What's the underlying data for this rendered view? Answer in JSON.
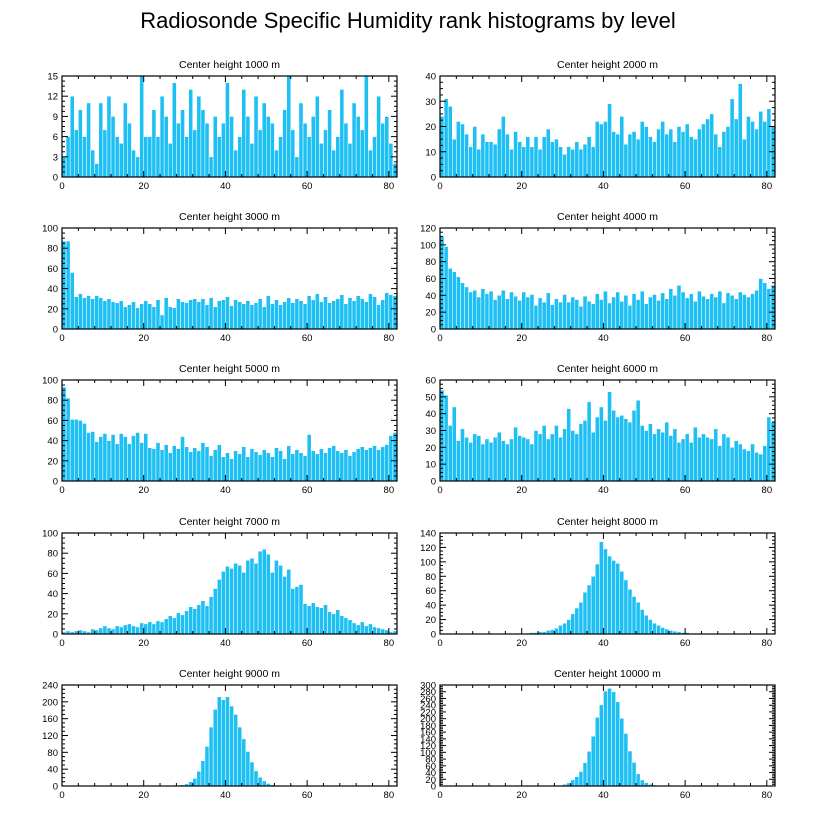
{
  "title": "Radiosonde Specific Humidity rank histograms by level",
  "colors": {
    "bar": "#1ec0f4",
    "bar_edge": "#ffffff",
    "axis": "#000000"
  },
  "chart_data": [
    {
      "type": "bar",
      "title": "Center height 1000 m",
      "xlabel": "",
      "ylabel": "",
      "xlim": [
        0,
        82
      ],
      "ylim": [
        0,
        15
      ],
      "xticks": [
        0,
        20,
        40,
        60,
        80
      ],
      "yticks": [
        0,
        3,
        6,
        9,
        12,
        15
      ],
      "values": [
        3,
        6,
        12,
        7,
        10,
        6,
        11,
        4,
        2,
        11,
        7,
        12,
        9,
        6,
        5,
        11,
        8,
        4,
        3,
        15,
        6,
        6,
        10,
        6,
        12,
        9,
        5,
        14,
        8,
        10,
        6,
        13,
        7,
        12,
        10,
        8,
        3,
        9,
        6,
        8,
        14,
        9,
        4,
        6,
        13,
        9,
        5,
        12,
        7,
        11,
        9,
        8,
        4,
        6,
        10,
        15,
        7,
        3,
        11,
        8,
        6,
        9,
        12,
        5,
        7,
        10,
        4,
        6,
        13,
        8,
        5,
        11,
        9,
        7,
        15,
        4,
        6,
        12,
        8,
        9,
        5,
        2
      ]
    },
    {
      "type": "bar",
      "title": "Center height 2000 m",
      "xlabel": "",
      "ylabel": "",
      "xlim": [
        0,
        82
      ],
      "ylim": [
        0,
        40
      ],
      "xticks": [
        0,
        20,
        40,
        60,
        80
      ],
      "yticks": [
        0,
        10,
        20,
        30,
        40
      ],
      "values": [
        24,
        31,
        28,
        15,
        22,
        21,
        17,
        12,
        20,
        11,
        17,
        14,
        14,
        13,
        19,
        24,
        17,
        11,
        18,
        14,
        12,
        16,
        12,
        16,
        11,
        16,
        19,
        14,
        15,
        12,
        9,
        12,
        11,
        14,
        11,
        13,
        16,
        12,
        22,
        21,
        22,
        29,
        18,
        17,
        24,
        13,
        17,
        18,
        15,
        22,
        20,
        16,
        14,
        19,
        22,
        17,
        19,
        14,
        20,
        18,
        21,
        16,
        15,
        19,
        21,
        23,
        25,
        17,
        12,
        18,
        20,
        31,
        23,
        37,
        15,
        24,
        22,
        19,
        26,
        22,
        27,
        20
      ]
    },
    {
      "type": "bar",
      "title": "Center height 3000 m",
      "xlabel": "",
      "ylabel": "",
      "xlim": [
        0,
        82
      ],
      "ylim": [
        0,
        100
      ],
      "xticks": [
        0,
        20,
        40,
        60,
        80
      ],
      "yticks": [
        0,
        20,
        40,
        60,
        80,
        100
      ],
      "values": [
        87,
        87,
        56,
        32,
        35,
        31,
        33,
        30,
        33,
        31,
        28,
        30,
        27,
        26,
        28,
        22,
        24,
        27,
        21,
        25,
        28,
        25,
        22,
        29,
        14,
        31,
        22,
        21,
        30,
        27,
        26,
        29,
        30,
        27,
        30,
        24,
        31,
        22,
        28,
        29,
        32,
        23,
        29,
        27,
        25,
        28,
        24,
        26,
        30,
        22,
        33,
        25,
        29,
        24,
        27,
        31,
        26,
        30,
        28,
        25,
        33,
        29,
        35,
        27,
        32,
        26,
        28,
        30,
        34,
        25,
        31,
        28,
        33,
        30,
        27,
        35,
        32,
        24,
        29,
        36,
        34,
        33
      ]
    },
    {
      "type": "bar",
      "title": "Center height 4000 m",
      "xlabel": "",
      "ylabel": "",
      "xlim": [
        0,
        82
      ],
      "ylim": [
        0,
        120
      ],
      "xticks": [
        0,
        20,
        40,
        60,
        80
      ],
      "yticks": [
        0,
        20,
        40,
        60,
        80,
        100,
        120
      ],
      "values": [
        110,
        98,
        72,
        68,
        62,
        55,
        50,
        44,
        46,
        38,
        48,
        42,
        45,
        35,
        40,
        46,
        36,
        44,
        39,
        34,
        44,
        38,
        41,
        28,
        37,
        32,
        43,
        29,
        36,
        32,
        41,
        32,
        38,
        35,
        27,
        39,
        33,
        30,
        42,
        35,
        45,
        31,
        38,
        44,
        33,
        40,
        28,
        42,
        35,
        45,
        30,
        38,
        41,
        34,
        43,
        36,
        48,
        40,
        52,
        44,
        37,
        42,
        33,
        45,
        39,
        36,
        42,
        38,
        45,
        31,
        43,
        40,
        36,
        44,
        41,
        38,
        42,
        46,
        60,
        55,
        48,
        52
      ]
    },
    {
      "type": "bar",
      "title": "Center height 5000 m",
      "xlabel": "",
      "ylabel": "",
      "xlim": [
        0,
        82
      ],
      "ylim": [
        0,
        100
      ],
      "xticks": [
        0,
        20,
        40,
        60,
        80
      ],
      "yticks": [
        0,
        20,
        40,
        60,
        80,
        100
      ],
      "values": [
        93,
        82,
        61,
        61,
        60,
        57,
        48,
        49,
        39,
        44,
        47,
        40,
        46,
        37,
        47,
        44,
        37,
        45,
        48,
        38,
        47,
        33,
        32,
        38,
        31,
        36,
        28,
        35,
        32,
        44,
        34,
        29,
        33,
        30,
        38,
        34,
        25,
        31,
        36,
        24,
        28,
        22,
        30,
        27,
        34,
        24,
        32,
        29,
        26,
        31,
        28,
        24,
        33,
        30,
        22,
        35,
        27,
        31,
        28,
        25,
        46,
        30,
        27,
        32,
        28,
        33,
        35,
        30,
        28,
        31,
        25,
        29,
        32,
        34,
        31,
        33,
        35,
        31,
        34,
        36,
        45,
        48
      ]
    },
    {
      "type": "bar",
      "title": "Center height 6000 m",
      "xlabel": "",
      "ylabel": "",
      "xlim": [
        0,
        82
      ],
      "ylim": [
        0,
        60
      ],
      "xticks": [
        0,
        20,
        40,
        60,
        80
      ],
      "yticks": [
        0,
        10,
        20,
        30,
        40,
        50,
        60
      ],
      "values": [
        54,
        51,
        33,
        44,
        24,
        31,
        26,
        23,
        28,
        27,
        22,
        25,
        23,
        26,
        29,
        24,
        22,
        25,
        32,
        27,
        26,
        25,
        22,
        30,
        28,
        33,
        25,
        28,
        33,
        26,
        31,
        43,
        30,
        28,
        34,
        36,
        47,
        29,
        38,
        44,
        36,
        53,
        42,
        38,
        39,
        37,
        35,
        42,
        48,
        33,
        30,
        34,
        28,
        31,
        29,
        35,
        27,
        31,
        23,
        25,
        28,
        23,
        32,
        26,
        28,
        26,
        25,
        31,
        21,
        28,
        26,
        20,
        24,
        22,
        19,
        18,
        22,
        17,
        16,
        21,
        38,
        35
      ]
    },
    {
      "type": "bar",
      "title": "Center height 7000 m",
      "xlabel": "",
      "ylabel": "",
      "xlim": [
        0,
        82
      ],
      "ylim": [
        0,
        100
      ],
      "xticks": [
        0,
        20,
        40,
        60,
        80
      ],
      "yticks": [
        0,
        20,
        40,
        60,
        80,
        100
      ],
      "values": [
        2,
        3,
        2,
        3,
        4,
        3,
        2,
        5,
        4,
        6,
        8,
        6,
        5,
        8,
        7,
        9,
        10,
        8,
        7,
        11,
        10,
        12,
        10,
        13,
        12,
        15,
        18,
        16,
        21,
        19,
        23,
        27,
        25,
        29,
        33,
        28,
        37,
        45,
        54,
        62,
        67,
        65,
        70,
        68,
        61,
        73,
        75,
        70,
        82,
        84,
        79,
        61,
        73,
        68,
        57,
        64,
        45,
        47,
        49,
        30,
        28,
        31,
        27,
        26,
        29,
        22,
        20,
        24,
        18,
        16,
        14,
        11,
        9,
        12,
        8,
        10,
        7,
        6,
        5,
        4,
        2,
        3
      ]
    },
    {
      "type": "bar",
      "title": "Center height 8000 m",
      "xlabel": "",
      "ylabel": "",
      "xlim": [
        0,
        82
      ],
      "ylim": [
        0,
        140
      ],
      "xticks": [
        0,
        20,
        40,
        60,
        80
      ],
      "yticks": [
        0,
        20,
        40,
        60,
        80,
        100,
        120,
        140
      ],
      "values": [
        0,
        0,
        0,
        0,
        0,
        0,
        0,
        0,
        0,
        0,
        0,
        0,
        0,
        0,
        0,
        0,
        0,
        0,
        0,
        0,
        1,
        1,
        2,
        2,
        3,
        3,
        5,
        6,
        8,
        12,
        15,
        20,
        28,
        36,
        44,
        58,
        68,
        80,
        97,
        128,
        118,
        108,
        102,
        98,
        87,
        75,
        62,
        52,
        44,
        34,
        26,
        20,
        15,
        12,
        9,
        7,
        5,
        4,
        3,
        2,
        2,
        1,
        1,
        1,
        0,
        0,
        0,
        0,
        0,
        0,
        0,
        0,
        0,
        0,
        0,
        0,
        0,
        0,
        0,
        0,
        0,
        0
      ]
    },
    {
      "type": "bar",
      "title": "Center height 9000 m",
      "xlabel": "",
      "ylabel": "",
      "xlim": [
        0,
        82
      ],
      "ylim": [
        0,
        240
      ],
      "xticks": [
        0,
        20,
        40,
        60,
        80
      ],
      "yticks": [
        0,
        40,
        80,
        120,
        160,
        200,
        240
      ],
      "values": [
        0,
        0,
        0,
        0,
        0,
        0,
        0,
        0,
        0,
        0,
        0,
        0,
        0,
        0,
        0,
        0,
        0,
        0,
        0,
        0,
        0,
        0,
        0,
        0,
        0,
        0,
        0,
        0,
        1,
        3,
        5,
        10,
        18,
        35,
        60,
        94,
        140,
        182,
        212,
        205,
        212,
        190,
        170,
        140,
        112,
        82,
        57,
        36,
        21,
        12,
        6,
        3,
        1,
        1,
        0,
        0,
        0,
        0,
        0,
        0,
        0,
        0,
        0,
        0,
        0,
        0,
        0,
        0,
        0,
        0,
        0,
        0,
        0,
        0,
        0,
        0,
        0,
        0,
        0,
        0,
        0,
        0
      ]
    },
    {
      "type": "bar",
      "title": "Center height 10000 m",
      "xlabel": "",
      "ylabel": "",
      "xlim": [
        0,
        82
      ],
      "ylim": [
        0,
        300
      ],
      "xticks": [
        0,
        20,
        40,
        60,
        80
      ],
      "yticks": [
        0,
        20,
        40,
        60,
        80,
        100,
        120,
        140,
        160,
        180,
        200,
        220,
        240,
        260,
        280,
        300
      ],
      "values": [
        0,
        0,
        0,
        0,
        0,
        0,
        0,
        0,
        0,
        0,
        0,
        0,
        0,
        0,
        0,
        0,
        0,
        0,
        0,
        0,
        0,
        0,
        0,
        0,
        0,
        0,
        0,
        0,
        1,
        2,
        5,
        9,
        18,
        28,
        43,
        69,
        103,
        148,
        204,
        241,
        282,
        290,
        280,
        250,
        201,
        156,
        104,
        70,
        36,
        18,
        10,
        5,
        3,
        1,
        0,
        0,
        0,
        0,
        0,
        0,
        0,
        0,
        0,
        0,
        0,
        0,
        0,
        0,
        0,
        0,
        0,
        0,
        0,
        0,
        0,
        0,
        0,
        0,
        0,
        0,
        0,
        0
      ]
    }
  ]
}
